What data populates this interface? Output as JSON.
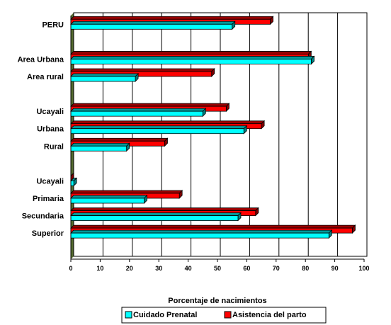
{
  "chart_data": {
    "type": "bar",
    "orientation": "horizontal",
    "categories": [
      "PERU",
      "",
      "Area Urbana",
      "Area rural",
      "",
      "Ucayali",
      "Urbana",
      "Rural",
      "",
      "Ucayali",
      "Primaria",
      "Secundaria",
      "Superior",
      ""
    ],
    "series": [
      {
        "name": "Asistencia del parto",
        "color": "#ff0000",
        "values": [
          68,
          null,
          81,
          48,
          null,
          53,
          65,
          32,
          null,
          0,
          37,
          63,
          96,
          null
        ]
      },
      {
        "name": "Cuidado Prenatal",
        "color": "#00ffff",
        "values": [
          55,
          null,
          82,
          22,
          null,
          45,
          59,
          19,
          null,
          1,
          25,
          57,
          88,
          null
        ]
      }
    ],
    "xlim": [
      0,
      100
    ],
    "xticks": [
      "0",
      "10",
      "20",
      "30",
      "40",
      "50",
      "60",
      "70",
      "80",
      "90",
      "100"
    ],
    "xlabel": "Porcentaje de nacimientos",
    "ylabel": "",
    "title": "",
    "grid": "vertical",
    "legend_position": "bottom"
  },
  "legend": {
    "items": [
      {
        "label": "Cuidado Prenatal",
        "color": "#00ffff"
      },
      {
        "label": "Asistencia del parto",
        "color": "#ff0000"
      }
    ]
  }
}
